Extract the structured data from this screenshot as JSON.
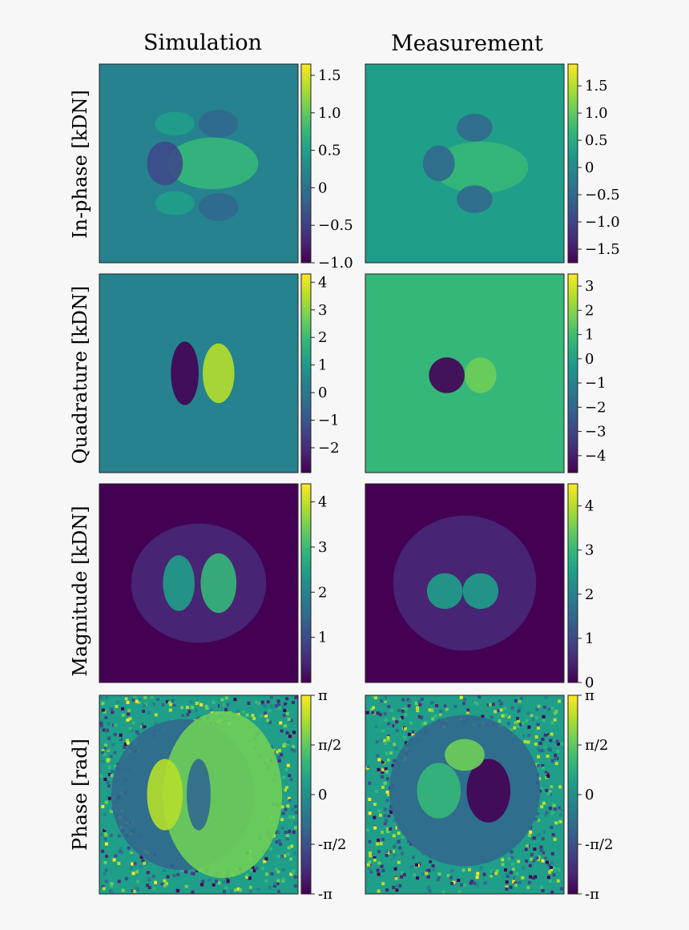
{
  "figure": {
    "columns": [
      "Simulation",
      "Measurement"
    ],
    "rows": [
      "In-phase [kDN]",
      "Quadrature [kDN]",
      "Magnitude [kDN]",
      "Phase [rad]"
    ]
  },
  "chart_data": [
    {
      "type": "heatmap",
      "title": "Simulation",
      "ylabel": "In-phase [kDN]",
      "colormap": "viridis",
      "clim": [
        -1.0,
        1.65
      ],
      "colorbar_ticks": [
        "1.5",
        "1.0",
        "0.5",
        "0",
        "−0.5",
        "−1.0"
      ],
      "colorbar_values": [
        1.5,
        1.0,
        0.5,
        0,
        -0.5,
        -1.0
      ],
      "pattern": "quadrupole: positive lobe center-right and upper-left/lower-left; negative lobes left, top-right, bottom-right",
      "grid": false
    },
    {
      "type": "heatmap",
      "title": "Measurement",
      "ylabel": "In-phase [kDN]",
      "colormap": "viridis",
      "clim": [
        -1.75,
        1.9
      ],
      "colorbar_ticks": [
        "1.5",
        "1.0",
        "0.5",
        "0",
        "−0.5",
        "−1.0",
        "−1.5"
      ],
      "colorbar_values": [
        1.5,
        1.0,
        0.5,
        0,
        -0.5,
        -1.0,
        -1.5
      ],
      "pattern": "weak noisy quadrupole, similar to simulation",
      "grid": false
    },
    {
      "type": "heatmap",
      "title": "Simulation",
      "ylabel": "Quadrature [kDN]",
      "colormap": "viridis",
      "clim": [
        -2.9,
        4.3
      ],
      "colorbar_ticks": [
        "4",
        "3",
        "2",
        "1",
        "0",
        "−1",
        "−2"
      ],
      "colorbar_values": [
        4,
        3,
        2,
        1,
        0,
        -1,
        -2
      ],
      "pattern": "dipole: negative lobe left of center, positive lobe right of center",
      "grid": false
    },
    {
      "type": "heatmap",
      "title": "Measurement",
      "ylabel": "Quadrature [kDN]",
      "colormap": "viridis",
      "clim": [
        -4.7,
        3.5
      ],
      "colorbar_ticks": [
        "3",
        "2",
        "1",
        "0",
        "−1",
        "−2",
        "−3",
        "−4"
      ],
      "colorbar_values": [
        3,
        2,
        1,
        0,
        -1,
        -2,
        -3,
        -4
      ],
      "pattern": "dipole: negative lobe left of center, positive lobe right of center",
      "grid": false
    },
    {
      "type": "heatmap",
      "title": "Simulation",
      "ylabel": "Magnitude [kDN]",
      "colormap": "viridis",
      "clim": [
        0,
        4.4
      ],
      "colorbar_ticks": [
        "4",
        "3",
        "2",
        "1"
      ],
      "colorbar_values": [
        4,
        3,
        2,
        1
      ],
      "pattern": "two bright lobes left and right of center with faint halo",
      "grid": false
    },
    {
      "type": "heatmap",
      "title": "Measurement",
      "ylabel": "Magnitude [kDN]",
      "colormap": "viridis",
      "clim": [
        0,
        4.5
      ],
      "colorbar_ticks": [
        "4",
        "3",
        "2",
        "1",
        "0"
      ],
      "colorbar_values": [
        4,
        3,
        2,
        1,
        0
      ],
      "pattern": "two bright lobes left and right of center with faint halo",
      "grid": false
    },
    {
      "type": "heatmap",
      "title": "Simulation",
      "ylabel": "Phase [rad]",
      "colormap": "viridis",
      "clim": [
        -3.1416,
        3.1416
      ],
      "colorbar_ticks": [
        "π",
        "π/2",
        "0",
        "-π/2",
        "-π"
      ],
      "colorbar_values": [
        3.1416,
        1.5708,
        0,
        -1.5708,
        -3.1416
      ],
      "pattern": "left disk near -pi/2, bright left-half core, right side near +pi/2, noisy background outside",
      "grid": false
    },
    {
      "type": "heatmap",
      "title": "Measurement",
      "ylabel": "Phase [rad]",
      "colormap": "viridis",
      "clim": [
        -3.1416,
        3.1416
      ],
      "colorbar_ticks": [
        "π",
        "π/2",
        "0",
        "-π/2",
        "-π"
      ],
      "colorbar_values": [
        3.1416,
        1.5708,
        0,
        -1.5708,
        -3.1416
      ],
      "pattern": "green left core, dark purple right core, rings and noise outside",
      "grid": false
    }
  ]
}
